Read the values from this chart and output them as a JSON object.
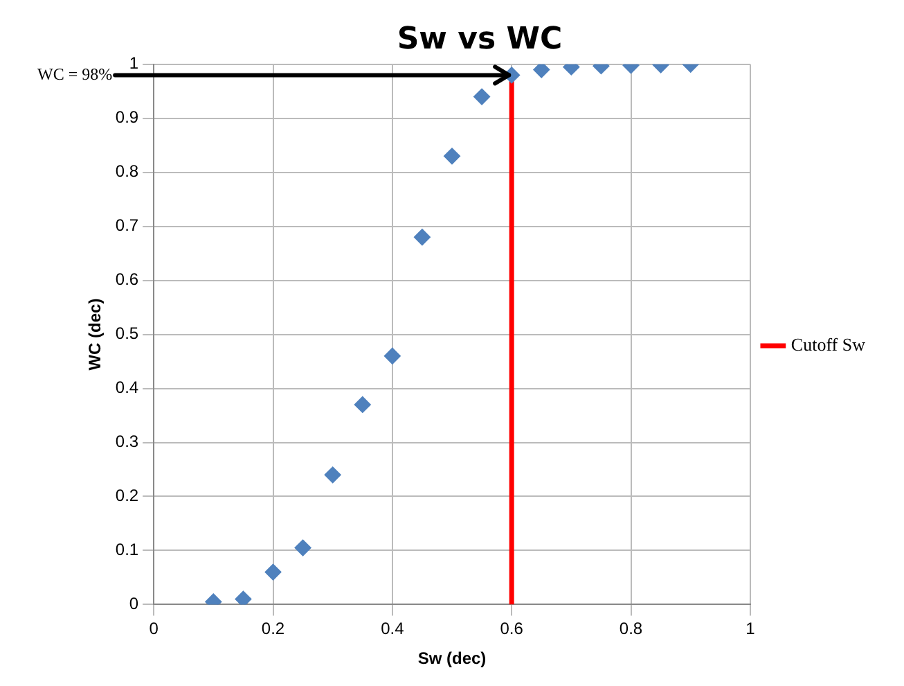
{
  "chart_data": {
    "type": "scatter",
    "title": "Sw vs WC",
    "xlabel": "Sw (dec)",
    "ylabel": "WC (dec)",
    "xlim": [
      0,
      1
    ],
    "xticks": [
      0,
      0.2,
      0.4,
      0.6,
      0.8,
      1
    ],
    "ylim": [
      0,
      1
    ],
    "yticks": [
      0,
      0.1,
      0.2,
      0.3,
      0.4,
      0.5,
      0.6,
      0.7,
      0.8,
      0.9,
      1
    ],
    "grid": true,
    "legend": "right",
    "series": [
      {
        "color": "#4f81bd",
        "marker": "diamond",
        "x": [
          0.1,
          0.15,
          0.2,
          0.25,
          0.3,
          0.35,
          0.4,
          0.45,
          0.5,
          0.55,
          0.6,
          0.65,
          0.7,
          0.75,
          0.8,
          0.85,
          0.9
        ],
        "values": [
          0.005,
          0.01,
          0.06,
          0.105,
          0.24,
          0.37,
          0.46,
          0.68,
          0.83,
          0.94,
          0.98,
          0.99,
          0.995,
          0.997,
          0.998,
          0.999,
          1.0
        ]
      },
      {
        "type": "line",
        "name": "Cutoff Sw",
        "color": "#ff0000",
        "marker": "none",
        "x": [
          0.6,
          0.6
        ],
        "values": [
          0,
          0.98
        ]
      }
    ],
    "annotations": [
      {
        "text": "WC = 98%",
        "x": 0.6,
        "y": 0.98
      }
    ]
  }
}
